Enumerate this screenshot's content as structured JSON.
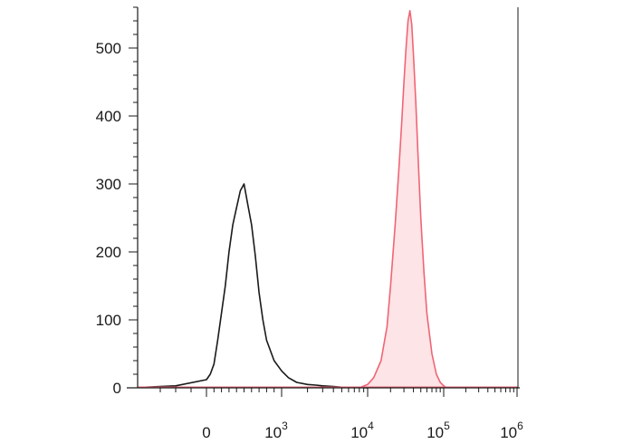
{
  "chart_data": {
    "type": "area",
    "title": "",
    "xlabel": "",
    "ylabel": "",
    "xscale": "biexponential",
    "xlim": [
      -400,
      1000000
    ],
    "ylim": [
      0,
      560
    ],
    "grid": false,
    "legend": "none",
    "y_ticks": [
      {
        "value": 0,
        "label": "0"
      },
      {
        "value": 100,
        "label": "100"
      },
      {
        "value": 200,
        "label": "200"
      },
      {
        "value": 300,
        "label": "300"
      },
      {
        "value": 400,
        "label": "400"
      },
      {
        "value": 500,
        "label": "500"
      }
    ],
    "x_ticks": [
      {
        "value": 0,
        "base": "0",
        "exp": ""
      },
      {
        "value": 1000,
        "base": "10",
        "exp": "3"
      },
      {
        "value": 10000,
        "base": "10",
        "exp": "4"
      },
      {
        "value": 100000,
        "base": "10",
        "exp": "5"
      },
      {
        "value": 1000000,
        "base": "10",
        "exp": "6"
      }
    ],
    "series": [
      {
        "style": "outline",
        "color": "#1a1a1a",
        "x": [
          -400,
          -200,
          0,
          50,
          100,
          150,
          200,
          250,
          300,
          350,
          400,
          450,
          500,
          550,
          600,
          650,
          700,
          750,
          800,
          900,
          1000,
          1200,
          1500,
          2000,
          2500,
          3000,
          4000,
          5000,
          7000,
          10000
        ],
        "y": [
          1,
          3,
          12,
          20,
          35,
          70,
          110,
          150,
          200,
          240,
          265,
          290,
          300,
          270,
          240,
          195,
          140,
          100,
          70,
          40,
          25,
          15,
          8,
          5,
          4,
          3,
          2,
          1,
          1,
          0
        ]
      },
      {
        "style": "filled",
        "color": "#f06575",
        "fill": "#fde4e6",
        "x": [
          8000,
          10000,
          12000,
          15000,
          18000,
          20000,
          23000,
          26000,
          28000,
          30000,
          32000,
          34000,
          36000,
          38000,
          40000,
          43000,
          46000,
          50000,
          55000,
          60000,
          70000,
          80000,
          90000,
          100000,
          110000
        ],
        "y": [
          0,
          5,
          15,
          40,
          90,
          150,
          240,
          330,
          390,
          450,
          500,
          540,
          555,
          535,
          490,
          420,
          340,
          250,
          170,
          110,
          50,
          20,
          8,
          3,
          0
        ]
      }
    ]
  }
}
